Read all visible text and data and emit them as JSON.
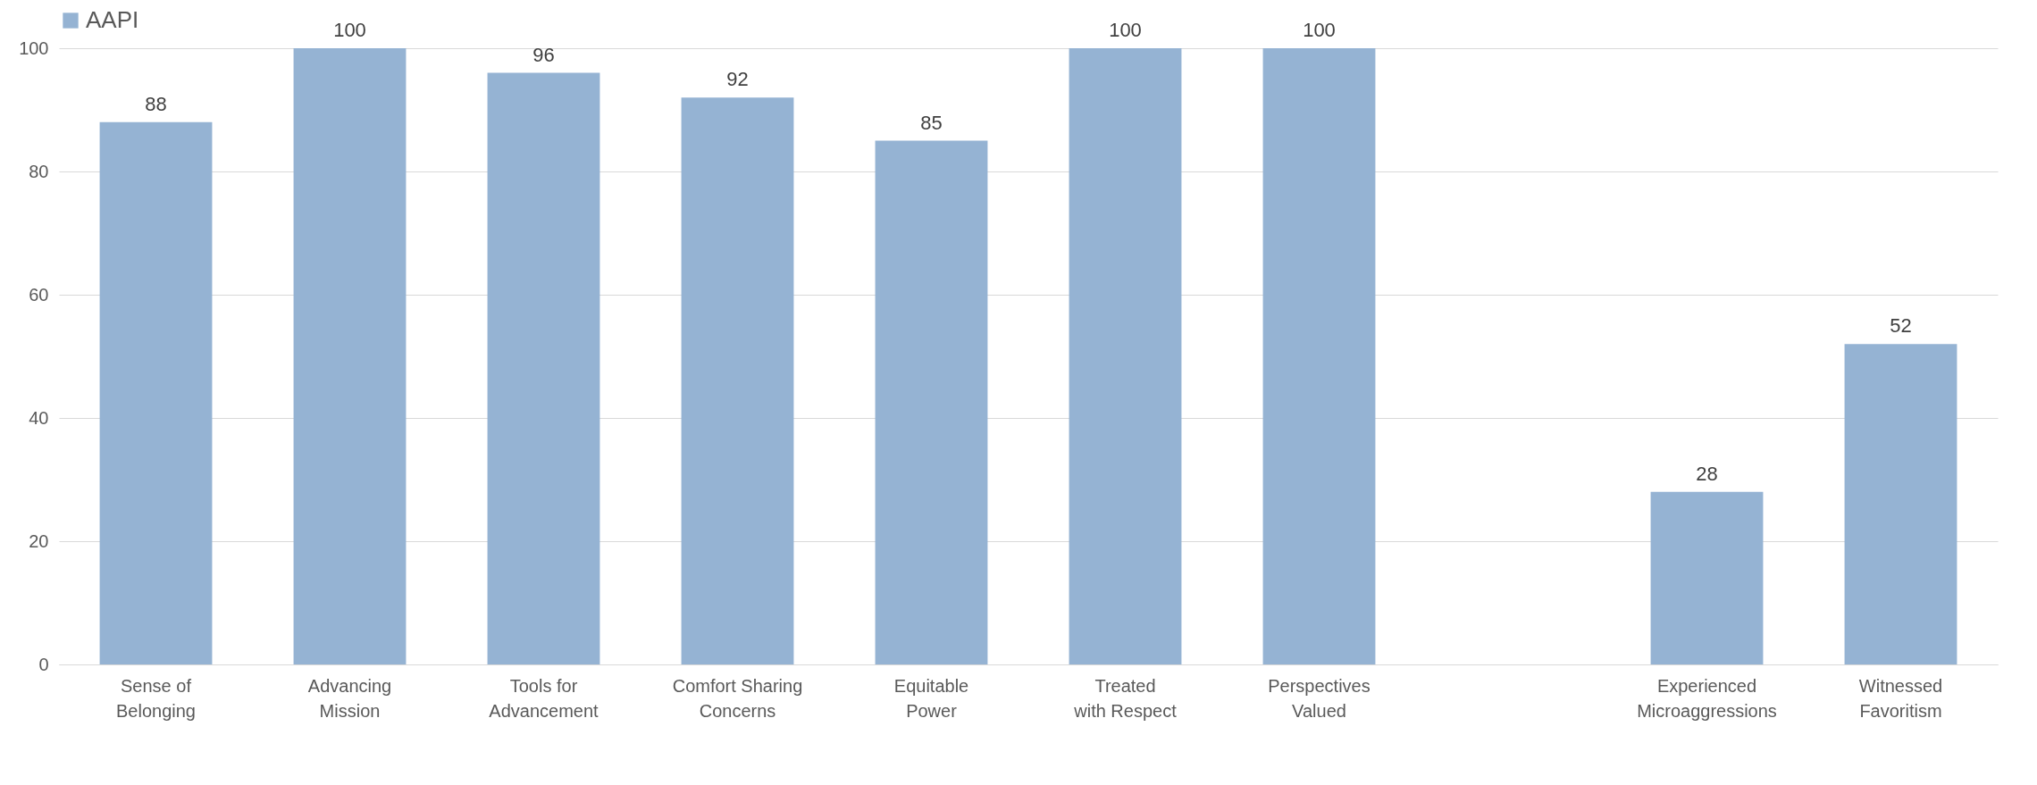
{
  "chart_data": {
    "type": "bar",
    "categories": [
      "Sense of Belonging",
      "Advancing Mission",
      "Tools for Advancement",
      "Comfort Sharing Concerns",
      "Equitable Power",
      "Treated with Respect",
      "Perspectives Valued",
      null,
      "Experienced Microaggressions",
      "Witnessed Favoritism"
    ],
    "series": [
      {
        "name": "AAPI",
        "color": "#95b3d3",
        "values": [
          88,
          100,
          96,
          92,
          85,
          100,
          100,
          null,
          28,
          52
        ]
      }
    ],
    "ylim": [
      0,
      100
    ],
    "yticks": [
      0,
      20,
      40,
      60,
      80,
      100
    ],
    "grid": "y",
    "legend": "top",
    "data_labels": true
  }
}
